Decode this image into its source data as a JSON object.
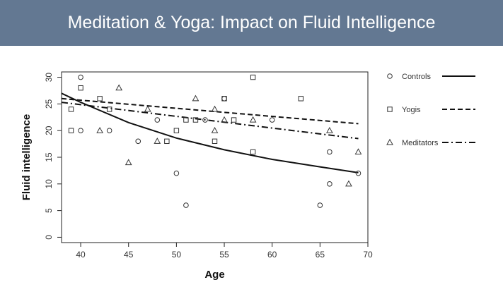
{
  "slide": {
    "title": "Meditation & Yoga: Impact on Fluid Intelligence",
    "header_color": "#637892"
  },
  "chart_data": {
    "type": "scatter",
    "title": "",
    "xlabel": "Age",
    "ylabel": "Fluid intelligence",
    "xlim": [
      38,
      70
    ],
    "ylim": [
      -1,
      31
    ],
    "xticks": [
      "40",
      "45",
      "50",
      "55",
      "60",
      "65",
      "70"
    ],
    "yticks": [
      "0",
      "5",
      "10",
      "15",
      "20",
      "25",
      "30"
    ],
    "grid": false,
    "legend_position": "right",
    "series": [
      {
        "name": "Controls",
        "marker": "circle",
        "line_style": "solid",
        "points": [
          [
            40,
            30
          ],
          [
            40,
            20
          ],
          [
            43,
            20
          ],
          [
            46,
            18
          ],
          [
            48,
            22
          ],
          [
            50,
            12
          ],
          [
            51,
            6
          ],
          [
            53,
            22
          ],
          [
            55,
            26
          ],
          [
            60,
            22
          ],
          [
            65,
            6
          ],
          [
            66,
            16
          ],
          [
            66,
            10
          ],
          [
            69,
            12
          ]
        ],
        "fit": [
          [
            38,
            27
          ],
          [
            40,
            25.3
          ],
          [
            45,
            21.5
          ],
          [
            50,
            18.6
          ],
          [
            55,
            16.4
          ],
          [
            60,
            14.6
          ],
          [
            65,
            13.2
          ],
          [
            69,
            12.1
          ]
        ]
      },
      {
        "name": "Yogis",
        "marker": "square",
        "line_style": "dashed",
        "points": [
          [
            39,
            24
          ],
          [
            39,
            20
          ],
          [
            40,
            28
          ],
          [
            42,
            26
          ],
          [
            43,
            24
          ],
          [
            49,
            18
          ],
          [
            50,
            20
          ],
          [
            51,
            22
          ],
          [
            52,
            22
          ],
          [
            54,
            18
          ],
          [
            55,
            26
          ],
          [
            56,
            22
          ],
          [
            58,
            30
          ],
          [
            58,
            16
          ],
          [
            63,
            26
          ]
        ],
        "fit": [
          [
            38,
            26
          ],
          [
            69,
            21.3
          ]
        ]
      },
      {
        "name": "Meditators",
        "marker": "triangle",
        "line_style": "dashdot",
        "points": [
          [
            42,
            20
          ],
          [
            44,
            28
          ],
          [
            45,
            14
          ],
          [
            47,
            24
          ],
          [
            48,
            18
          ],
          [
            52,
            26
          ],
          [
            54,
            24
          ],
          [
            54,
            20
          ],
          [
            55,
            22
          ],
          [
            58,
            22
          ],
          [
            66,
            20
          ],
          [
            68,
            10
          ],
          [
            69,
            16
          ]
        ],
        "fit": [
          [
            38,
            25.3
          ],
          [
            69,
            18.5
          ]
        ]
      }
    ]
  }
}
